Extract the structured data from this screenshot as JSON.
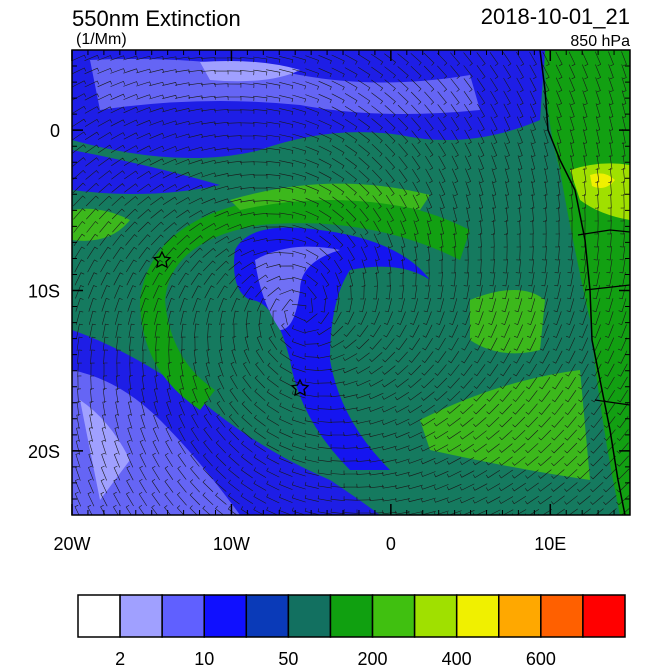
{
  "map": {
    "title": "550nm Extinction",
    "units": "(1/Mm)",
    "date": "2018-10-01_21",
    "level": "850 hPa",
    "xlim": [
      -20,
      15
    ],
    "ylim": [
      -24,
      5
    ],
    "xticks": [
      {
        "value": -20,
        "label": "20W"
      },
      {
        "value": -10,
        "label": "10W"
      },
      0,
      {
        "value": 10,
        "label": "10E"
      }
    ],
    "yticks": [
      0,
      {
        "value": -10,
        "label": "10S"
      },
      {
        "value": -20,
        "label": "20S"
      }
    ]
  },
  "colorbar": {
    "colors": [
      "#ffffff",
      "#a0a0ff",
      "#6060ff",
      "#1010ff",
      "#0a3ab8",
      "#127060",
      "#10a010",
      "#40c010",
      "#a0e000",
      "#f0f000",
      "#ffa800",
      "#ff6000",
      "#ff0000"
    ],
    "edge_labels": [
      "2",
      null,
      "10",
      null,
      "50",
      null,
      "200",
      null,
      "400",
      null,
      "600",
      null
    ]
  }
}
